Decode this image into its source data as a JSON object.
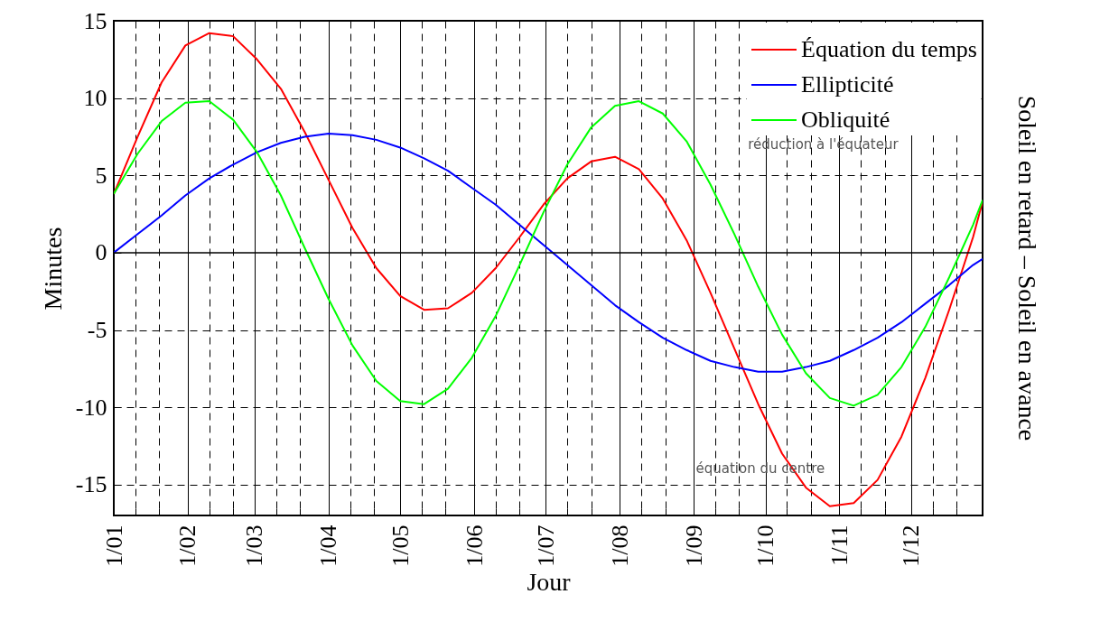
{
  "chart_data": {
    "type": "line",
    "xlabel": "Jour",
    "ylabel": "Minutes",
    "y2label": "Soleil en retard – Soleil  en avance",
    "x": [
      "--01-01",
      "--01-11",
      "--01-21",
      "--01-31",
      "--02-10",
      "--02-20",
      "--03-02",
      "--03-12",
      "--03-22",
      "--04-01",
      "--04-11",
      "--04-21",
      "--05-01",
      "--05-11",
      "--05-21",
      "--05-31",
      "--06-10",
      "--06-20",
      "--06-30",
      "--07-10",
      "--07-20",
      "--07-30",
      "--08-09",
      "--08-19",
      "--08-29",
      "--09-08",
      "--09-18",
      "--09-28",
      "--10-08",
      "--10-18",
      "--10-28",
      "--11-07",
      "--11-17",
      "--11-27",
      "--12-07",
      "--12-17",
      "--12-27",
      "--12-31"
    ],
    "series": [
      {
        "name": "Équation du temps",
        "color": "#ff0000",
        "values": [
          3.8,
          7.5,
          11.0,
          13.4,
          14.2,
          14.0,
          12.5,
          10.6,
          7.8,
          4.7,
          1.6,
          -1.0,
          -2.8,
          -3.7,
          -3.6,
          -2.6,
          -1.0,
          1.0,
          3.1,
          4.8,
          5.9,
          6.2,
          5.4,
          3.5,
          0.8,
          -2.6,
          -6.2,
          -9.8,
          -13.0,
          -15.2,
          -16.4,
          -16.2,
          -14.7,
          -11.9,
          -8.1,
          -3.7,
          1.0,
          3.3
        ]
      },
      {
        "name": "Ellipticité",
        "color": "#0000ff",
        "values": [
          0.0,
          1.2,
          2.4,
          3.7,
          4.8,
          5.7,
          6.5,
          7.1,
          7.5,
          7.7,
          7.6,
          7.3,
          6.8,
          6.1,
          5.3,
          4.2,
          3.1,
          1.8,
          0.5,
          -0.8,
          -2.1,
          -3.4,
          -4.5,
          -5.5,
          -6.3,
          -7.0,
          -7.4,
          -7.7,
          -7.7,
          -7.4,
          -7.0,
          -6.3,
          -5.5,
          -4.5,
          -3.3,
          -2.1,
          -0.8,
          -0.4
        ]
      },
      {
        "name": "Obliquité",
        "color": "#00ff00",
        "values": [
          3.8,
          6.4,
          8.5,
          9.7,
          9.8,
          8.6,
          6.5,
          3.7,
          0.3,
          -3.0,
          -6.0,
          -8.3,
          -9.6,
          -9.8,
          -8.8,
          -6.8,
          -4.1,
          -0.8,
          2.6,
          5.7,
          8.1,
          9.5,
          9.8,
          9.0,
          7.2,
          4.4,
          1.2,
          -2.2,
          -5.3,
          -7.8,
          -9.4,
          -9.9,
          -9.2,
          -7.4,
          -4.8,
          -1.6,
          1.8,
          3.4
        ]
      }
    ],
    "xlim": [
      "--01-01",
      "--12-31"
    ],
    "xticks": [
      {
        "value": "--01-01",
        "label": "1/01"
      },
      {
        "value": "--01-10",
        "label": null
      },
      {
        "value": "--01-20",
        "label": null
      },
      {
        "value": "--02-01",
        "label": "1/02"
      },
      {
        "value": "--02-10",
        "label": null
      },
      {
        "value": "--02-20",
        "label": null
      },
      {
        "value": "--03-01",
        "label": "1/03"
      },
      {
        "value": "--03-10",
        "label": null
      },
      {
        "value": "--03-20",
        "label": null
      },
      {
        "value": "--04-01",
        "label": "1/04"
      },
      {
        "value": "--04-10",
        "label": null
      },
      {
        "value": "--04-20",
        "label": null
      },
      {
        "value": "--05-01",
        "label": "1/05"
      },
      {
        "value": "--05-10",
        "label": null
      },
      {
        "value": "--05-20",
        "label": null
      },
      {
        "value": "--06-01",
        "label": "1/06"
      },
      {
        "value": "--06-10",
        "label": null
      },
      {
        "value": "--06-20",
        "label": null
      },
      {
        "value": "--07-01",
        "label": "1/07"
      },
      {
        "value": "--07-10",
        "label": null
      },
      {
        "value": "--07-20",
        "label": null
      },
      {
        "value": "--08-01",
        "label": "1/08"
      },
      {
        "value": "--08-10",
        "label": null
      },
      {
        "value": "--08-20",
        "label": null
      },
      {
        "value": "--09-01",
        "label": "1/09"
      },
      {
        "value": "--09-10",
        "label": null
      },
      {
        "value": "--09-20",
        "label": null
      },
      {
        "value": "--10-01",
        "label": "1/10"
      },
      {
        "value": "--10-10",
        "label": null
      },
      {
        "value": "--10-20",
        "label": null
      },
      {
        "value": "--11-01",
        "label": "1/11"
      },
      {
        "value": "--11-10",
        "label": null
      },
      {
        "value": "--11-20",
        "label": null
      },
      {
        "value": "--12-01",
        "label": "1/12"
      },
      {
        "value": "--12-10",
        "label": null
      },
      {
        "value": "--12-20",
        "label": null
      }
    ],
    "ylim": [
      -17,
      15
    ],
    "yticks": [
      -15,
      -10,
      -5,
      0,
      5,
      10,
      15
    ],
    "grid": true,
    "legend": "top right",
    "line_style": "solid",
    "ref_lines": [
      {
        "axis": "y",
        "value": 0,
        "color": "#000000"
      }
    ],
    "annotations": [
      "réduction à l'équateur",
      "équation du centre"
    ]
  }
}
